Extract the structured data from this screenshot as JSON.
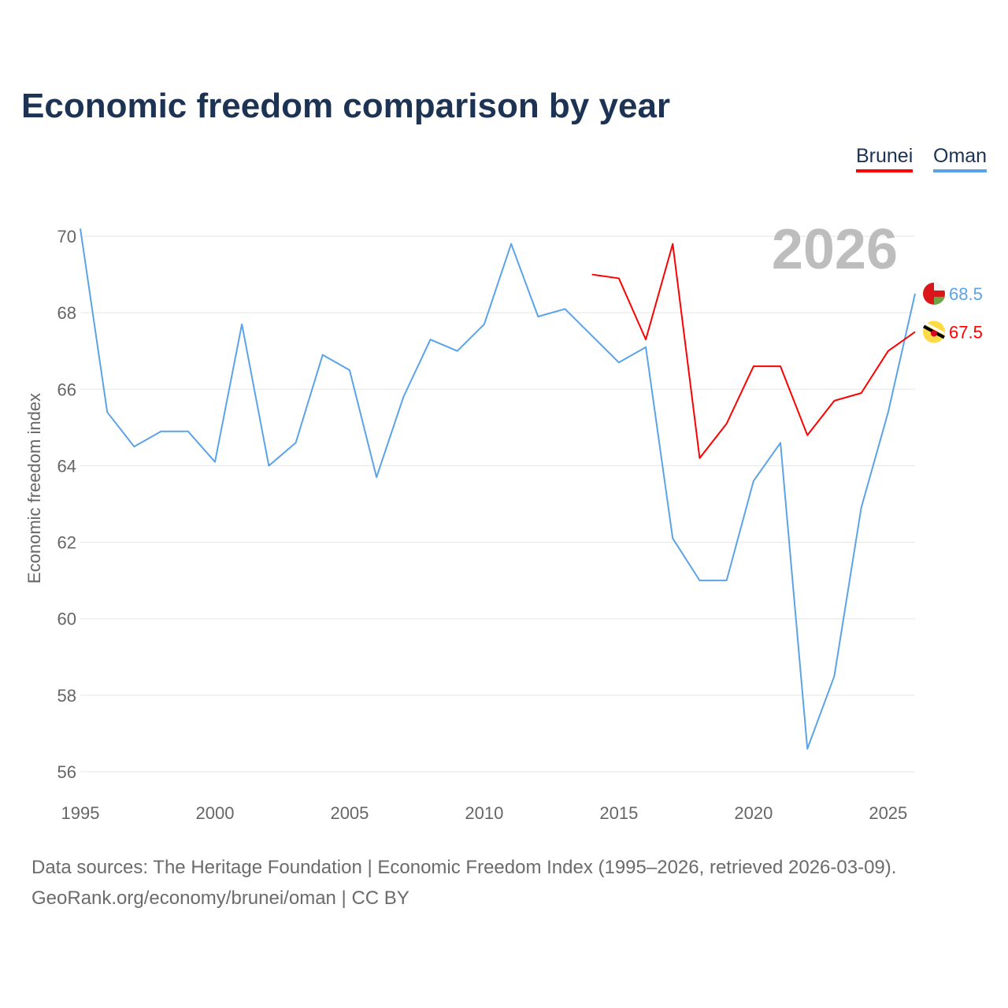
{
  "chart_data": {
    "type": "line",
    "title": "Economic freedom comparison by year",
    "xlabel": "",
    "ylabel": "Economic freedom index",
    "xlim": [
      1995,
      2026
    ],
    "ylim": [
      56,
      70
    ],
    "xticks": [
      1995,
      2000,
      2005,
      2010,
      2015,
      2020,
      2025
    ],
    "yticks": [
      56,
      58,
      60,
      62,
      64,
      66,
      68,
      70
    ],
    "grid": true,
    "legend_position": "top-right",
    "year_label": "2026",
    "series": [
      {
        "name": "Brunei",
        "color": "#ff0000",
        "end_label": "67.5",
        "x": [
          2014,
          2015,
          2016,
          2017,
          2018,
          2019,
          2020,
          2021,
          2022,
          2023,
          2024,
          2025,
          2026
        ],
        "values": [
          69.0,
          68.9,
          67.3,
          69.8,
          64.2,
          65.1,
          66.6,
          66.6,
          64.8,
          65.7,
          65.9,
          67.0,
          67.5
        ]
      },
      {
        "name": "Oman",
        "color": "#5ba3e8",
        "end_label": "68.5",
        "x": [
          1995,
          1996,
          1997,
          1998,
          1999,
          2000,
          2001,
          2002,
          2003,
          2004,
          2005,
          2006,
          2007,
          2008,
          2009,
          2010,
          2011,
          2012,
          2013,
          2014,
          2015,
          2016,
          2017,
          2018,
          2019,
          2020,
          2021,
          2022,
          2023,
          2024,
          2025,
          2026
        ],
        "values": [
          70.2,
          65.4,
          64.5,
          64.9,
          64.9,
          64.1,
          67.7,
          64.0,
          64.6,
          66.9,
          66.5,
          63.7,
          65.8,
          67.3,
          67.0,
          67.7,
          69.8,
          67.9,
          68.1,
          67.4,
          66.7,
          67.1,
          62.1,
          61.0,
          61.0,
          63.6,
          64.6,
          56.6,
          58.5,
          62.9,
          65.4,
          68.5
        ]
      }
    ]
  },
  "footer": {
    "line1": "Data sources: The Heritage Foundation | Economic Freedom Index (1995–2026, retrieved 2026-03-09).",
    "line2": "GeoRank.org/economy/brunei/oman | CC BY"
  }
}
